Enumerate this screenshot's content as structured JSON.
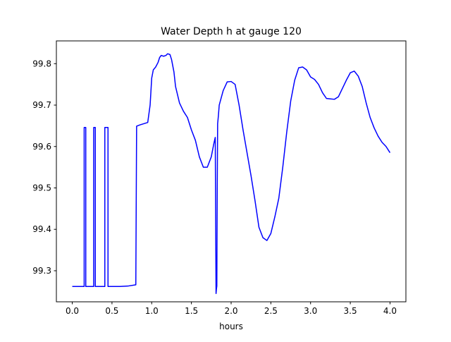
{
  "chart_data": {
    "type": "line",
    "title": "Water Depth h at gauge 120",
    "xlabel": "hours",
    "ylabel": "",
    "xlim": [
      -0.2,
      4.2
    ],
    "ylim": [
      99.225,
      99.855
    ],
    "xticks": [
      0.0,
      0.5,
      1.0,
      1.5,
      2.0,
      2.5,
      3.0,
      3.5,
      4.0
    ],
    "xtick_labels": [
      "0.0",
      "0.5",
      "1.0",
      "1.5",
      "2.0",
      "2.5",
      "3.0",
      "3.5",
      "4.0"
    ],
    "yticks": [
      99.3,
      99.4,
      99.5,
      99.6,
      99.7,
      99.8
    ],
    "ytick_labels": [
      "99.3",
      "99.4",
      "99.5",
      "99.6",
      "99.7",
      "99.8"
    ],
    "grid": false,
    "series": [
      {
        "color": "#0000ff",
        "x": [
          0.0,
          0.15,
          0.15,
          0.17,
          0.17,
          0.27,
          0.27,
          0.29,
          0.29,
          0.41,
          0.41,
          0.45,
          0.45,
          0.6,
          0.7,
          0.8,
          0.81,
          0.85,
          0.9,
          0.95,
          0.98,
          1.0,
          1.02,
          1.05,
          1.08,
          1.1,
          1.12,
          1.15,
          1.18,
          1.2,
          1.23,
          1.25,
          1.28,
          1.3,
          1.35,
          1.4,
          1.45,
          1.5,
          1.55,
          1.6,
          1.65,
          1.7,
          1.75,
          1.78,
          1.8,
          1.81,
          1.815,
          1.82,
          1.825,
          1.83,
          1.835,
          1.84,
          1.85,
          1.9,
          1.95,
          2.0,
          2.05,
          2.1,
          2.15,
          2.2,
          2.25,
          2.3,
          2.35,
          2.4,
          2.45,
          2.5,
          2.55,
          2.6,
          2.65,
          2.7,
          2.75,
          2.8,
          2.85,
          2.9,
          2.95,
          3.0,
          3.05,
          3.1,
          3.15,
          3.2,
          3.25,
          3.3,
          3.35,
          3.4,
          3.45,
          3.5,
          3.55,
          3.6,
          3.65,
          3.7,
          3.75,
          3.8,
          3.85,
          3.9,
          3.95,
          4.0
        ],
        "values": [
          99.262,
          99.262,
          99.646,
          99.646,
          99.262,
          99.262,
          99.646,
          99.646,
          99.262,
          99.262,
          99.646,
          99.646,
          99.262,
          99.262,
          99.263,
          99.266,
          99.649,
          99.652,
          99.655,
          99.658,
          99.7,
          99.765,
          99.785,
          99.792,
          99.803,
          99.815,
          99.82,
          99.818,
          99.82,
          99.824,
          99.822,
          99.81,
          99.78,
          99.745,
          99.705,
          99.685,
          99.67,
          99.64,
          99.615,
          99.575,
          99.55,
          99.55,
          99.575,
          99.605,
          99.622,
          99.245,
          99.256,
          99.263,
          99.5,
          99.655,
          99.665,
          99.675,
          99.7,
          99.735,
          99.756,
          99.757,
          99.75,
          99.7,
          99.64,
          99.585,
          99.53,
          99.47,
          99.405,
          99.38,
          99.373,
          99.39,
          99.43,
          99.475,
          99.55,
          99.635,
          99.71,
          99.76,
          99.79,
          99.792,
          99.785,
          99.768,
          99.762,
          99.75,
          99.73,
          99.716,
          99.715,
          99.714,
          99.72,
          99.74,
          99.76,
          99.778,
          99.782,
          99.77,
          99.745,
          99.705,
          99.67,
          99.645,
          99.625,
          99.61,
          99.6,
          99.585
        ]
      }
    ]
  }
}
